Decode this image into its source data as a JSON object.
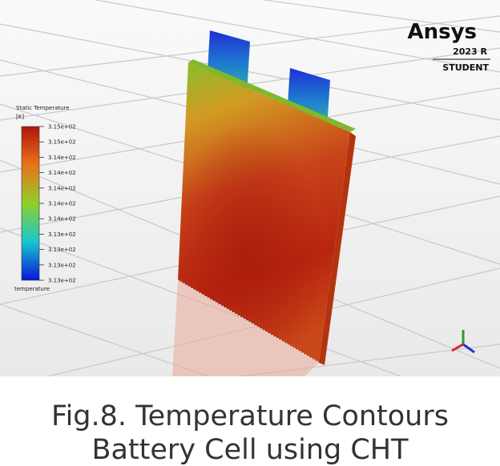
{
  "figure": {
    "legend": {
      "title": "Static Temperature",
      "unit": "[K]",
      "labels": [
        "3.15e+02",
        "3.15e+02",
        "3.14e+02",
        "3.14e+02",
        "3.14e+02",
        "3.14e+02",
        "3.14e+02",
        "3.13e+02",
        "3.13e+02",
        "3.13e+02",
        "3.13e+02"
      ],
      "footer": "temperature"
    },
    "logo": {
      "brand": "Ansys",
      "version": "2023 R",
      "edition": "STUDENT"
    }
  },
  "caption": {
    "line1": "Fig.8. Temperature Contours",
    "line2": "Battery Cell using CHT"
  }
}
